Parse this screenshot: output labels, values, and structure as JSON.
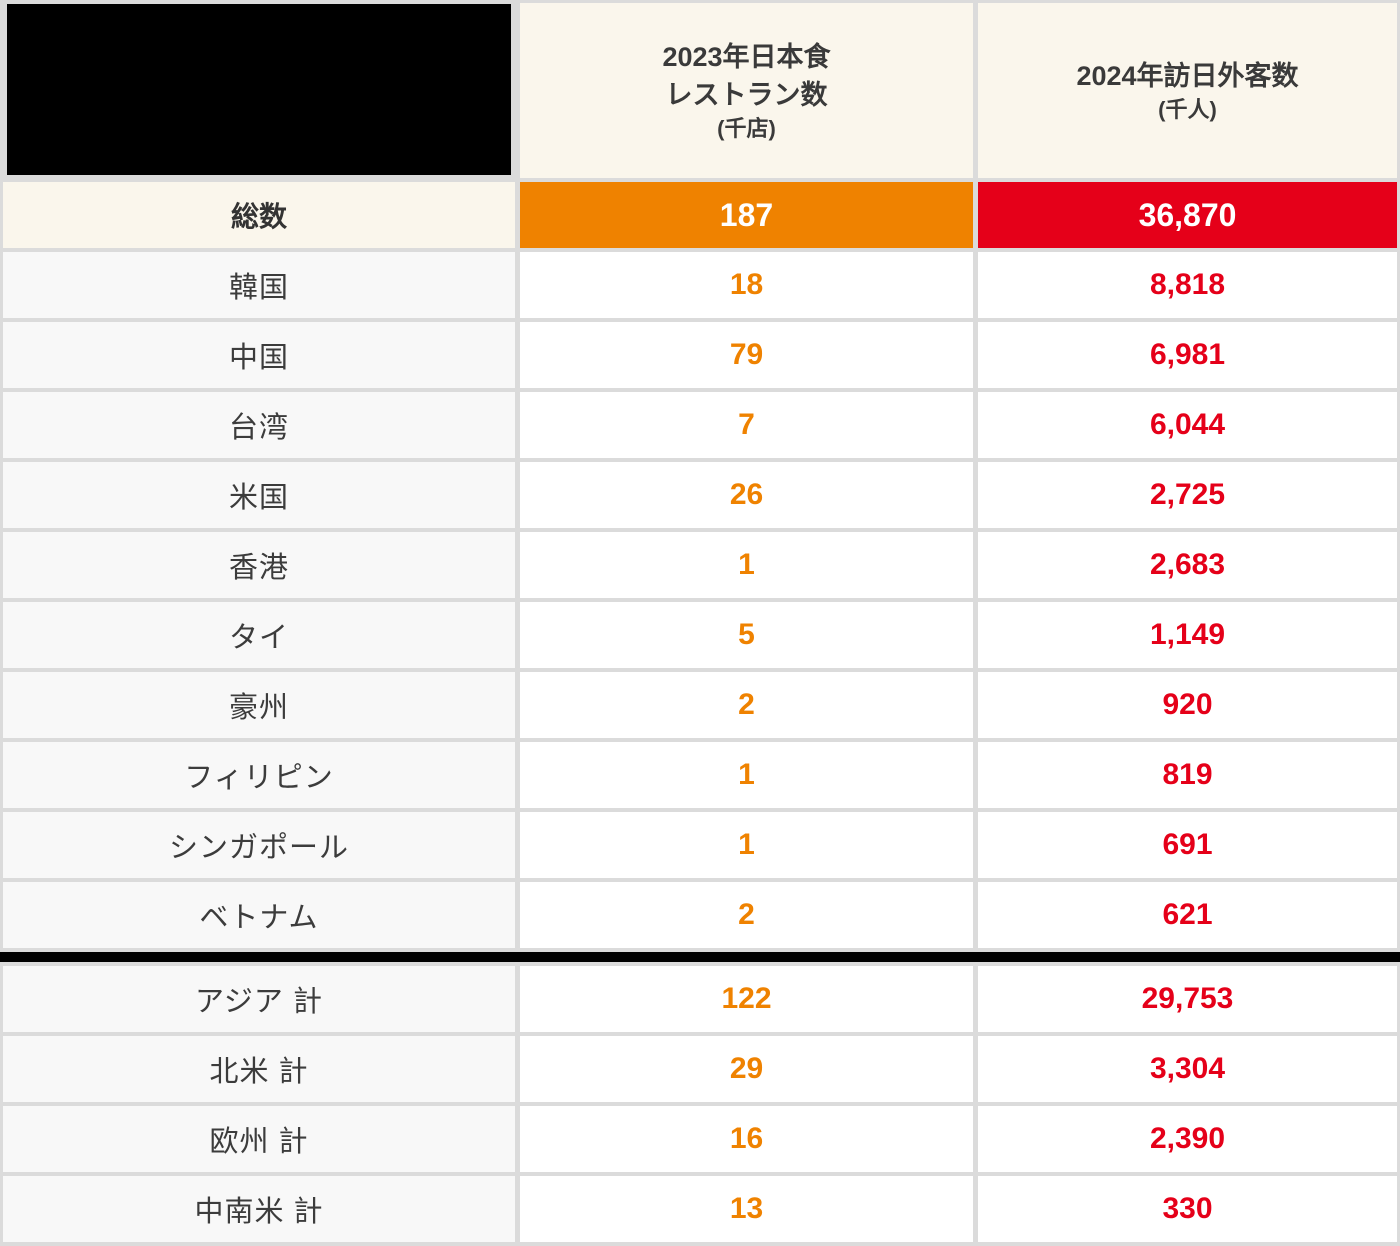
{
  "header": {
    "col_restaurants": {
      "line1": "2023年日本食",
      "line2": "レストラン数",
      "unit": "(千店)"
    },
    "col_visitors": {
      "line1": "2024年訪日外客数",
      "unit": "(千人)"
    }
  },
  "total": {
    "label": "総数",
    "restaurants": "187",
    "visitors": "36,870"
  },
  "rows": [
    {
      "label": "韓国",
      "restaurants": "18",
      "visitors": "8,818"
    },
    {
      "label": "中国",
      "restaurants": "79",
      "visitors": "6,981"
    },
    {
      "label": "台湾",
      "restaurants": "7",
      "visitors": "6,044"
    },
    {
      "label": "米国",
      "restaurants": "26",
      "visitors": "2,725"
    },
    {
      "label": "香港",
      "restaurants": "1",
      "visitors": "2,683"
    },
    {
      "label": "タイ",
      "restaurants": "5",
      "visitors": "1,149"
    },
    {
      "label": "豪州",
      "restaurants": "2",
      "visitors": "920"
    },
    {
      "label": "フィリピン",
      "restaurants": "1",
      "visitors": "819"
    },
    {
      "label": "シンガポール",
      "restaurants": "1",
      "visitors": "691"
    },
    {
      "label": "ベトナム",
      "restaurants": "2",
      "visitors": "621"
    }
  ],
  "region_rows": [
    {
      "label": "アジア 計",
      "restaurants": "122",
      "visitors": "29,753"
    },
    {
      "label": "北米 計",
      "restaurants": "29",
      "visitors": "3,304"
    },
    {
      "label": "欧州 計",
      "restaurants": "16",
      "visitors": "2,390"
    },
    {
      "label": "中南米 計",
      "restaurants": "13",
      "visitors": "330"
    }
  ],
  "colors": {
    "orange_accent": "#EF8200",
    "red_accent": "#E50019",
    "cream_header": "#FAF6EC",
    "row_label_bg": "#F8F8F8",
    "grid_border": "#DBDBDB",
    "divider": "#000000"
  },
  "chart_data": {
    "type": "table",
    "title": "",
    "columns": [
      "",
      "2023年日本食レストラン数 (千店)",
      "2024年訪日外客数 (千人)"
    ],
    "rows": [
      [
        "総数",
        187,
        36870
      ],
      [
        "韓国",
        18,
        8818
      ],
      [
        "中国",
        79,
        6981
      ],
      [
        "台湾",
        7,
        6044
      ],
      [
        "米国",
        26,
        2725
      ],
      [
        "香港",
        1,
        2683
      ],
      [
        "タイ",
        5,
        1149
      ],
      [
        "豪州",
        2,
        920
      ],
      [
        "フィリピン",
        1,
        819
      ],
      [
        "シンガポール",
        1,
        691
      ],
      [
        "ベトナム",
        2,
        621
      ],
      [
        "アジア 計",
        122,
        29753
      ],
      [
        "北米 計",
        29,
        3304
      ],
      [
        "欧州 計",
        16,
        2390
      ],
      [
        "中南米 計",
        13,
        330
      ]
    ]
  }
}
